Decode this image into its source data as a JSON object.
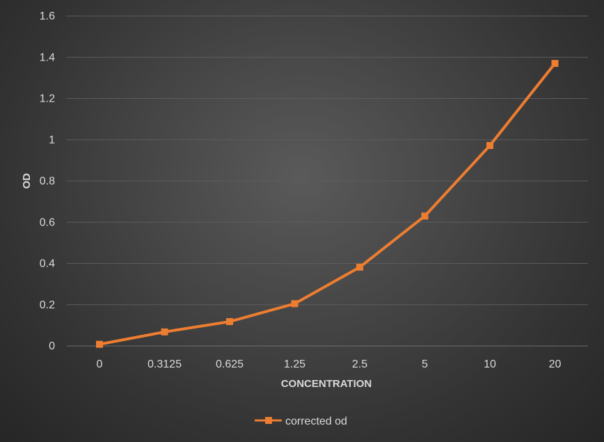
{
  "chart_data": {
    "type": "line",
    "title": "",
    "xlabel": "CONCENTRATION",
    "ylabel": "OD",
    "categories": [
      "0",
      "0.3125",
      "0.625",
      "1.25",
      "2.5",
      "5",
      "10",
      "20"
    ],
    "series": [
      {
        "name": "corrected od",
        "values": [
          0.008,
          0.068,
          0.118,
          0.205,
          0.382,
          0.63,
          0.972,
          1.37
        ]
      }
    ],
    "ylim": [
      0,
      1.6
    ],
    "yticks": [
      "0",
      "0.2",
      "0.4",
      "0.6",
      "0.8",
      "1",
      "1.2",
      "1.4",
      "1.6"
    ],
    "grid": true,
    "legend_position": "bottom",
    "colors": {
      "series": "#ed7d31",
      "grid": "#5c5c5c",
      "text": "#d9d9d9"
    }
  }
}
